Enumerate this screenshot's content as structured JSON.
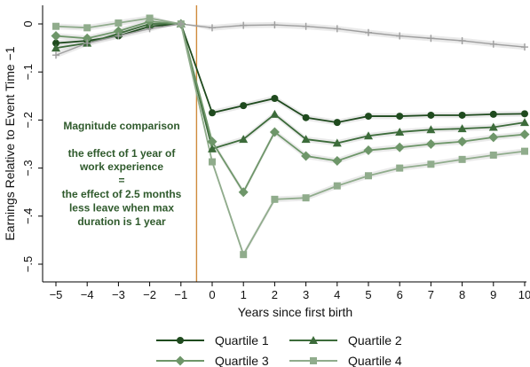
{
  "chart_data": {
    "type": "line",
    "xlabel": "Years since first birth",
    "ylabel": "Earnings Relative to Event Time −1",
    "xlim": [
      -5,
      10
    ],
    "ylim": [
      -0.5,
      0.02
    ],
    "xticks": [
      -5,
      -4,
      -3,
      -2,
      -1,
      0,
      1,
      2,
      3,
      4,
      5,
      6,
      7,
      8,
      9,
      10
    ],
    "yticks": [
      0,
      -0.1,
      -0.2,
      -0.3,
      -0.4,
      -0.5
    ],
    "ytick_labels": [
      "0",
      "−.1",
      "−.2",
      "−.3",
      "−.4",
      "−.5"
    ],
    "event_line_x": -0.5,
    "grid": false,
    "legend_position": "bottom",
    "annotation": [
      "Magnitude comparison",
      "",
      "the effect of 1 year of",
      "work experience",
      "=",
      "the effect of 2.5 months",
      "less leave when max",
      "duration is 1 year"
    ],
    "x": [
      -5,
      -4,
      -3,
      -2,
      -1,
      0,
      1,
      2,
      3,
      4,
      5,
      6,
      7,
      8,
      9,
      10
    ],
    "series": [
      {
        "name": "Quartile 1",
        "marker": "circle",
        "color": "#1f4a1e",
        "values": [
          -0.04,
          -0.035,
          -0.025,
          -0.005,
          0,
          -0.185,
          -0.17,
          -0.155,
          -0.195,
          -0.205,
          -0.192,
          -0.192,
          -0.19,
          -0.19,
          -0.188,
          -0.187
        ]
      },
      {
        "name": "Quartile 2",
        "marker": "triangle",
        "color": "#3c6b3a",
        "values": [
          -0.05,
          -0.04,
          -0.02,
          0.0,
          0,
          -0.26,
          -0.24,
          -0.188,
          -0.24,
          -0.248,
          -0.233,
          -0.225,
          -0.22,
          -0.218,
          -0.215,
          -0.205
        ]
      },
      {
        "name": "Quartile 3",
        "marker": "diamond",
        "color": "#6e9669",
        "values": [
          -0.025,
          -0.03,
          -0.015,
          0.005,
          0,
          -0.245,
          -0.35,
          -0.225,
          -0.275,
          -0.285,
          -0.263,
          -0.257,
          -0.25,
          -0.245,
          -0.236,
          -0.23
        ]
      },
      {
        "name": "Quartile 4",
        "marker": "square",
        "color": "#90ac8c",
        "values": [
          -0.005,
          -0.008,
          0.002,
          0.012,
          0,
          -0.287,
          -0.48,
          -0.365,
          -0.362,
          -0.337,
          -0.316,
          -0.3,
          -0.292,
          -0.282,
          -0.273,
          -0.265
        ]
      },
      {
        "name": "",
        "marker": "plus",
        "color": "#9e9e9e",
        "values": [
          -0.065,
          -0.04,
          -0.025,
          -0.01,
          0,
          -0.008,
          -0.003,
          -0.002,
          -0.005,
          -0.01,
          -0.018,
          -0.025,
          -0.03,
          -0.035,
          -0.042,
          -0.048
        ]
      }
    ]
  }
}
